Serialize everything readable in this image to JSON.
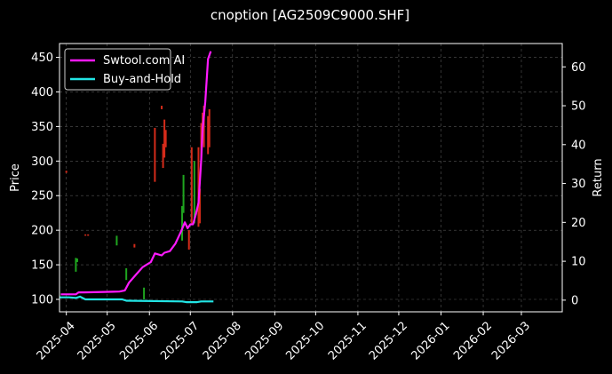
{
  "chart_data": {
    "type": "line",
    "title": "cnoption [AG2509C9000.SHF]",
    "ylabel_left": "Price",
    "ylabel_right": "Return",
    "xlim": [
      "2025-03-27",
      "2026-03-31"
    ],
    "ylim_left": [
      82,
      470
    ],
    "ylim_right": [
      -3,
      66
    ],
    "grid": true,
    "legend_position": "top-left",
    "x_ticks": [
      "2025-04",
      "2025-05",
      "2025-06",
      "2025-07",
      "2025-08",
      "2025-09",
      "2025-10",
      "2025-11",
      "2025-12",
      "2026-01",
      "2026-02",
      "2026-03"
    ],
    "y_ticks_left": [
      100,
      150,
      200,
      250,
      300,
      350,
      400,
      450
    ],
    "y_ticks_right": [
      0,
      10,
      20,
      30,
      40,
      50,
      60
    ],
    "colors": {
      "up": "#1fa51f",
      "down": "#d42b1a",
      "strategy": "#ff1aff",
      "benchmark": "#22e5e5",
      "background": "#000000",
      "grid": "#555555"
    },
    "price_bars": [
      {
        "date": "2025-04-01",
        "low": 283,
        "high": 286,
        "dir": "down"
      },
      {
        "date": "2025-04-08",
        "low": 140,
        "high": 160,
        "dir": "up"
      },
      {
        "date": "2025-04-09",
        "low": 154,
        "high": 159,
        "dir": "up"
      },
      {
        "date": "2025-04-15",
        "low": 192,
        "high": 194,
        "dir": "down"
      },
      {
        "date": "2025-04-17",
        "low": 192,
        "high": 194,
        "dir": "down"
      },
      {
        "date": "2025-05-08",
        "low": 178,
        "high": 192,
        "dir": "up"
      },
      {
        "date": "2025-05-15",
        "low": 128,
        "high": 145,
        "dir": "up"
      },
      {
        "date": "2025-05-21",
        "low": 175,
        "high": 180,
        "dir": "down"
      },
      {
        "date": "2025-05-28",
        "low": 100,
        "high": 117,
        "dir": "up"
      },
      {
        "date": "2025-06-05",
        "low": 270,
        "high": 348,
        "dir": "down"
      },
      {
        "date": "2025-06-10",
        "low": 375,
        "high": 380,
        "dir": "down"
      },
      {
        "date": "2025-06-11",
        "low": 290,
        "high": 325,
        "dir": "down"
      },
      {
        "date": "2025-06-12",
        "low": 305,
        "high": 360,
        "dir": "down"
      },
      {
        "date": "2025-06-13",
        "low": 320,
        "high": 345,
        "dir": "down"
      },
      {
        "date": "2025-06-25",
        "low": 185,
        "high": 235,
        "dir": "up"
      },
      {
        "date": "2025-06-26",
        "low": 225,
        "high": 280,
        "dir": "up"
      },
      {
        "date": "2025-06-30",
        "low": 172,
        "high": 200,
        "dir": "down"
      },
      {
        "date": "2025-07-02",
        "low": 210,
        "high": 320,
        "dir": "down"
      },
      {
        "date": "2025-07-04",
        "low": 210,
        "high": 300,
        "dir": "up"
      },
      {
        "date": "2025-07-07",
        "low": 205,
        "high": 320,
        "dir": "down"
      },
      {
        "date": "2025-07-08",
        "low": 210,
        "high": 260,
        "dir": "down"
      },
      {
        "date": "2025-07-09",
        "low": 300,
        "high": 355,
        "dir": "down"
      },
      {
        "date": "2025-07-10",
        "low": 340,
        "high": 370,
        "dir": "down"
      },
      {
        "date": "2025-07-11",
        "low": 320,
        "high": 380,
        "dir": "down"
      },
      {
        "date": "2025-07-14",
        "low": 310,
        "high": 365,
        "dir": "down"
      },
      {
        "date": "2025-07-15",
        "low": 320,
        "high": 375,
        "dir": "down"
      }
    ],
    "series": [
      {
        "name": "Swtool.com AI",
        "axis": "right",
        "points": [
          [
            "2025-03-28",
            1.5
          ],
          [
            "2025-04-08",
            1.5
          ],
          [
            "2025-04-10",
            2.0
          ],
          [
            "2025-04-14",
            2.0
          ],
          [
            "2025-05-10",
            2.2
          ],
          [
            "2025-05-14",
            2.5
          ],
          [
            "2025-05-17",
            4.5
          ],
          [
            "2025-05-22",
            6.5
          ],
          [
            "2025-05-27",
            8.5
          ],
          [
            "2025-06-02",
            9.8
          ],
          [
            "2025-06-05",
            12.0
          ],
          [
            "2025-06-10",
            11.5
          ],
          [
            "2025-06-12",
            12.2
          ],
          [
            "2025-06-16",
            12.6
          ],
          [
            "2025-06-20",
            14.5
          ],
          [
            "2025-06-24",
            17.5
          ],
          [
            "2025-06-27",
            20.0
          ],
          [
            "2025-06-29",
            18.5
          ],
          [
            "2025-07-01",
            19.5
          ],
          [
            "2025-07-03",
            19.5
          ],
          [
            "2025-07-05",
            22.0
          ],
          [
            "2025-07-07",
            25.0
          ],
          [
            "2025-07-09",
            36.0
          ],
          [
            "2025-07-10",
            44.0
          ],
          [
            "2025-07-12",
            51.0
          ],
          [
            "2025-07-14",
            62.0
          ],
          [
            "2025-07-16",
            64.0
          ]
        ]
      },
      {
        "name": "Buy-and-Hold",
        "axis": "left",
        "points": [
          [
            "2025-03-27",
            103
          ],
          [
            "2025-04-03",
            103
          ],
          [
            "2025-04-08",
            102
          ],
          [
            "2025-04-11",
            104
          ],
          [
            "2025-04-15",
            100
          ],
          [
            "2025-05-12",
            100
          ],
          [
            "2025-05-15",
            98
          ],
          [
            "2025-06-25",
            97
          ],
          [
            "2025-06-28",
            96
          ],
          [
            "2025-07-06",
            96
          ],
          [
            "2025-07-09",
            97
          ],
          [
            "2025-07-18",
            97
          ]
        ]
      }
    ]
  }
}
